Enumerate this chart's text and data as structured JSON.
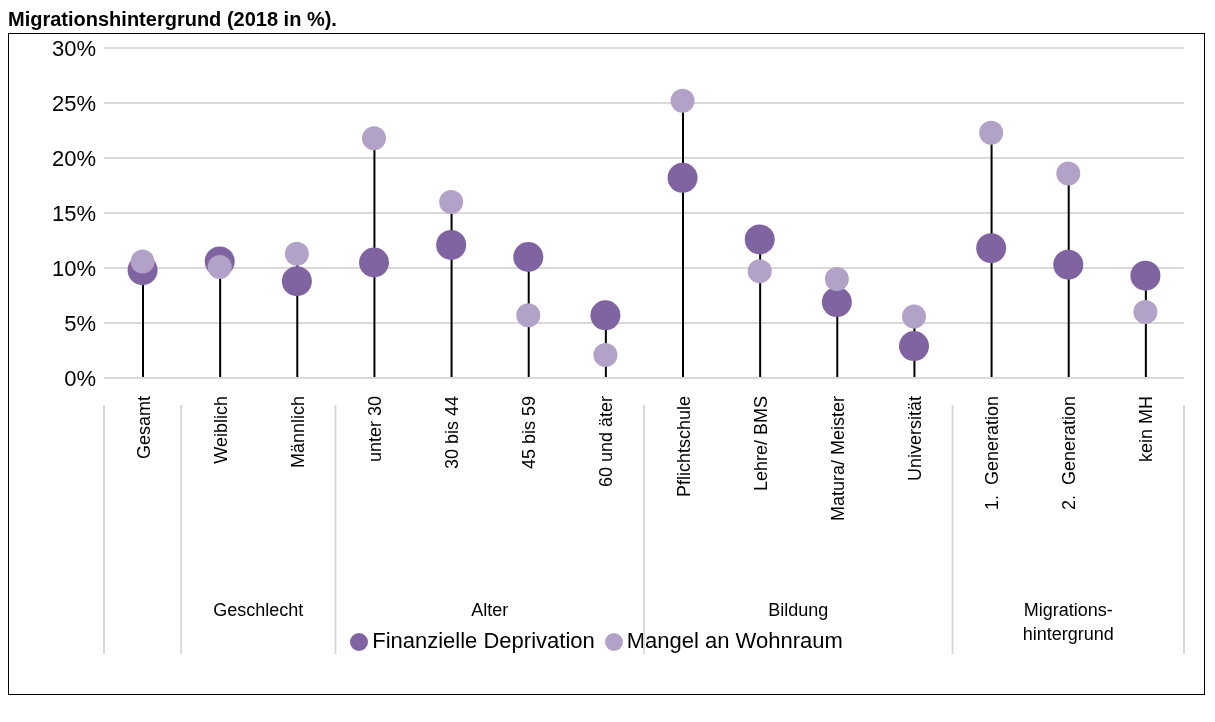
{
  "chart_data": {
    "type": "lollipop",
    "title": "Migrationshintergrund (2018 in %).",
    "categories": [
      "Gesamt",
      "Weiblich",
      "Männlich",
      "unter 30",
      "30 bis 44",
      "45 bis 59",
      "60 und äter",
      "Pflichtschule",
      "Lehre/ BMS",
      "Matura/ Meister",
      "Universität",
      "1.  Generation",
      "2.  Generation",
      "kein MH"
    ],
    "series": [
      {
        "name": "Finanzielle Deprivation",
        "color": "#8064a2",
        "values": [
          9.8,
          10.6,
          8.8,
          10.5,
          12.1,
          11.0,
          5.7,
          18.2,
          12.6,
          6.9,
          2.9,
          11.8,
          10.3,
          9.3
        ]
      },
      {
        "name": "Mangel an Wohnraum",
        "color": "#b3a2c7",
        "values": [
          10.6,
          10.1,
          11.3,
          21.8,
          16.0,
          5.7,
          2.1,
          25.2,
          9.7,
          9.0,
          5.6,
          22.3,
          18.6,
          6.0
        ]
      }
    ],
    "annotations": [
      "Geschlecht",
      "Alter",
      "Bildung",
      "Migrations-hintergrund"
    ],
    "ylim": [
      0,
      30
    ],
    "yticks": [
      {
        "value": 0,
        "label": "0%"
      },
      {
        "value": 5,
        "label": "5%"
      },
      {
        "value": 10,
        "label": "10%"
      },
      {
        "value": 15,
        "label": "15%"
      },
      {
        "value": 20,
        "label": "20%"
      },
      {
        "value": 25,
        "label": "25%"
      },
      {
        "value": 30,
        "label": "30%"
      }
    ],
    "grid": "y",
    "legend": "bottom",
    "marker": "circle"
  }
}
